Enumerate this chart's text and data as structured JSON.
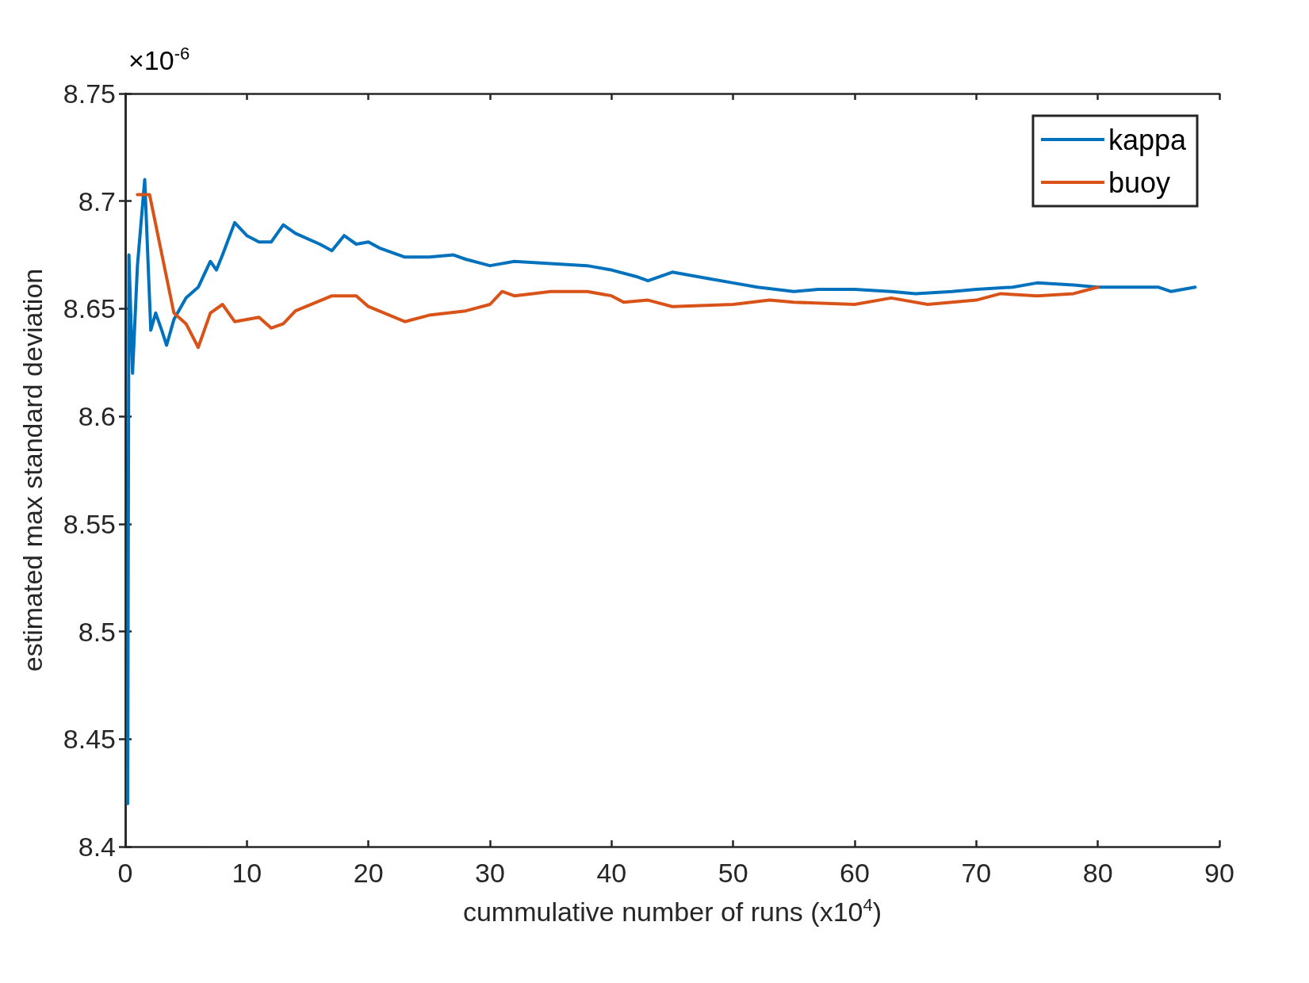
{
  "chart_data": {
    "type": "line",
    "xlabel": "cummulative number of runs (x10$^{4}$)",
    "ylabel": "estimated max standard deviation",
    "annotations": [
      "×10$^{-6}$"
    ],
    "xlim": [
      0,
      90
    ],
    "xticks": [
      0,
      10,
      20,
      30,
      40,
      50,
      60,
      70,
      80,
      90
    ],
    "ylim": [
      8.4,
      8.75
    ],
    "yticks": [
      8.4,
      8.45,
      8.5,
      8.55,
      8.6,
      8.65,
      8.7,
      8.75
    ],
    "grid": false,
    "legend": "top right",
    "line_style": "solid",
    "marker": "none",
    "series": [
      {
        "name": "kappa",
        "color": "#0072bd",
        "x": [
          0.2,
          0.3,
          0.6,
          1.0,
          1.6,
          2.1,
          2.5,
          3,
          3.4,
          4,
          5,
          6,
          7,
          7.5,
          8,
          9,
          10,
          11,
          12,
          13,
          14,
          16,
          17,
          18,
          19,
          20,
          21,
          23,
          25,
          27,
          28,
          30,
          32,
          35,
          38,
          40,
          42,
          43,
          45,
          48,
          50,
          52,
          55,
          57,
          60,
          63,
          65,
          68,
          70,
          73,
          75,
          78,
          80,
          83,
          85,
          86,
          88
        ],
        "values": [
          8.42,
          8.675,
          8.62,
          8.67,
          8.71,
          8.64,
          8.648,
          8.64,
          8.633,
          8.645,
          8.655,
          8.66,
          8.672,
          8.668,
          8.675,
          8.69,
          8.684,
          8.681,
          8.681,
          8.689,
          8.685,
          8.68,
          8.677,
          8.684,
          8.68,
          8.681,
          8.678,
          8.674,
          8.674,
          8.675,
          8.673,
          8.67,
          8.672,
          8.671,
          8.67,
          8.668,
          8.665,
          8.663,
          8.667,
          8.664,
          8.662,
          8.66,
          8.658,
          8.659,
          8.659,
          8.658,
          8.657,
          8.658,
          8.659,
          8.66,
          8.662,
          8.661,
          8.66,
          8.66,
          8.66,
          8.658,
          8.66
        ]
      },
      {
        "name": "buoy",
        "color": "#d95319",
        "x": [
          1,
          2,
          4,
          5,
          6,
          7,
          8,
          9,
          11,
          12,
          13,
          14,
          17,
          19,
          20,
          23,
          25,
          28,
          30,
          31,
          32,
          35,
          38,
          40,
          41,
          43,
          45,
          50,
          53,
          55,
          60,
          63,
          66,
          70,
          72,
          75,
          78,
          80
        ],
        "values": [
          8.703,
          8.703,
          8.648,
          8.643,
          8.632,
          8.648,
          8.652,
          8.644,
          8.646,
          8.641,
          8.643,
          8.649,
          8.656,
          8.656,
          8.651,
          8.644,
          8.647,
          8.649,
          8.652,
          8.658,
          8.656,
          8.658,
          8.658,
          8.656,
          8.653,
          8.654,
          8.651,
          8.652,
          8.654,
          8.653,
          8.652,
          8.655,
          8.652,
          8.654,
          8.657,
          8.656,
          8.657,
          8.66
        ]
      }
    ]
  }
}
